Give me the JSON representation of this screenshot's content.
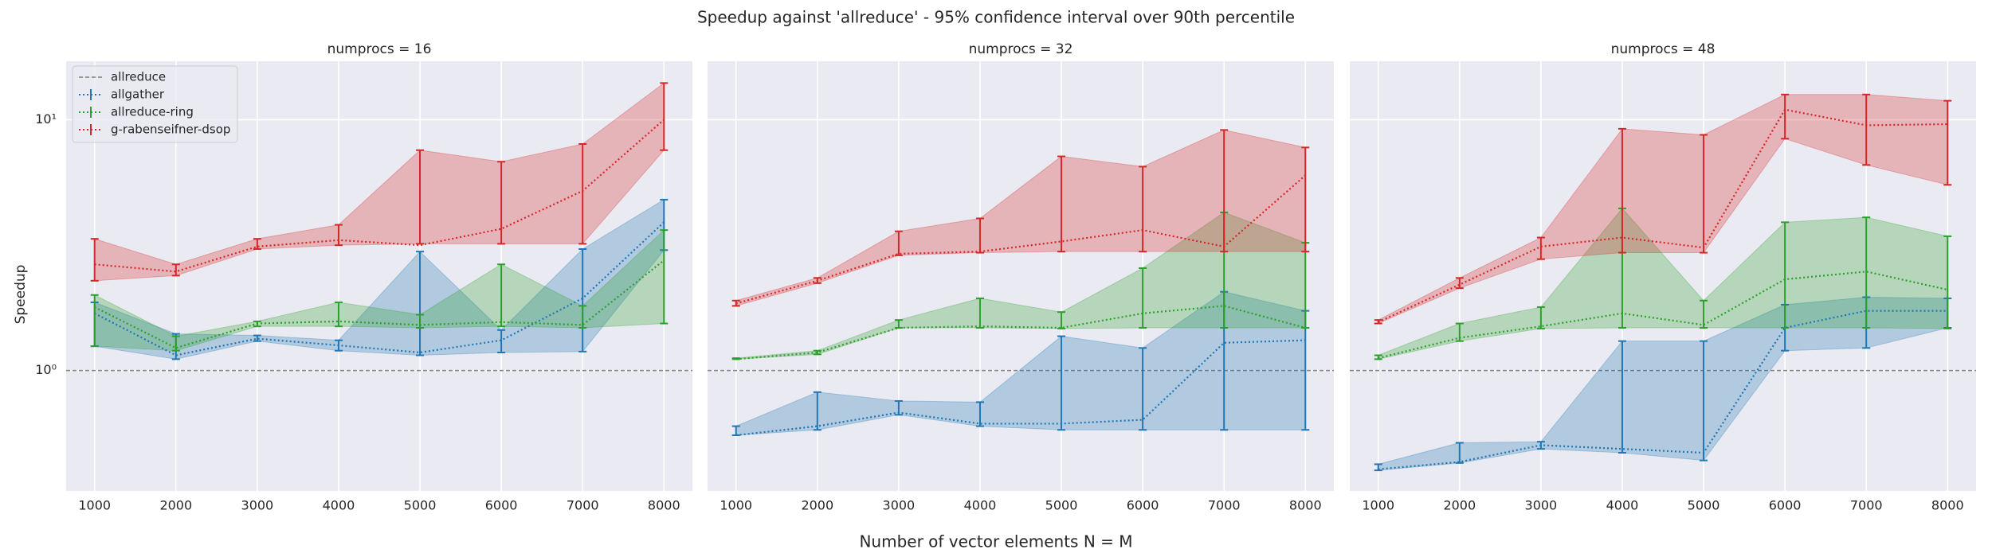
{
  "title": "Speedup against 'allreduce' - 95% confidence interval over 90th percentile",
  "x_label": "Number of vector elements N = M",
  "y_label": "Speedup",
  "chart_data": [
    {
      "type": "line",
      "title": "numprocs = 16",
      "x": [
        1000,
        2000,
        3000,
        4000,
        5000,
        6000,
        7000,
        8000
      ],
      "xlim": [
        650,
        8350
      ],
      "xticks": [
        1000,
        2000,
        3000,
        4000,
        5000,
        6000,
        7000,
        8000
      ],
      "ylim": [
        0.331,
        17.1
      ],
      "yscale": "log",
      "yticks": [
        {
          "value": 1,
          "label": "10⁰"
        },
        {
          "value": 10,
          "label": "10¹"
        }
      ],
      "grid": true,
      "legend": "upper left",
      "reference": {
        "name": "allreduce",
        "value": 1,
        "color": "#808080"
      },
      "series": [
        {
          "name": "allgather",
          "color": "#1f77b4",
          "values": [
            1.69,
            1.15,
            1.34,
            1.26,
            1.18,
            1.32,
            1.94,
            3.9
          ],
          "lower": [
            1.25,
            1.11,
            1.31,
            1.2,
            1.15,
            1.18,
            1.19,
            3.02
          ],
          "upper": [
            1.87,
            1.4,
            1.38,
            1.32,
            2.98,
            1.45,
            3.05,
            4.8
          ]
        },
        {
          "name": "allreduce-ring",
          "color": "#2ca02c",
          "values": [
            1.79,
            1.23,
            1.54,
            1.57,
            1.52,
            1.56,
            1.52,
            2.75
          ],
          "lower": [
            1.25,
            1.2,
            1.5,
            1.5,
            1.48,
            1.5,
            1.48,
            1.54
          ],
          "upper": [
            2.0,
            1.37,
            1.57,
            1.87,
            1.67,
            2.65,
            1.81,
            3.63
          ]
        },
        {
          "name": "g-rabenseifner-dsop",
          "color": "#d62728",
          "values": [
            2.65,
            2.48,
            3.12,
            3.31,
            3.16,
            3.67,
            5.2,
            10.0
          ],
          "lower": [
            2.28,
            2.39,
            3.05,
            3.16,
            3.2,
            3.2,
            3.2,
            7.56
          ],
          "upper": [
            3.35,
            2.65,
            3.35,
            3.81,
            7.56,
            6.8,
            8.0,
            14.0
          ]
        }
      ]
    },
    {
      "type": "line",
      "title": "numprocs = 32",
      "x": [
        1000,
        2000,
        3000,
        4000,
        5000,
        6000,
        7000,
        8000
      ],
      "xlim": [
        650,
        8350
      ],
      "xticks": [
        1000,
        2000,
        3000,
        4000,
        5000,
        6000,
        7000,
        8000
      ],
      "sharey": true,
      "grid": true,
      "reference": {
        "name": "allreduce",
        "value": 1,
        "color": "#808080"
      },
      "series": [
        {
          "name": "allgather",
          "color": "#1f77b4",
          "values": [
            0.552,
            0.6,
            0.68,
            0.614,
            0.614,
            0.636,
            1.29,
            1.32
          ],
          "lower": [
            0.552,
            0.58,
            0.666,
            0.6,
            0.58,
            0.58,
            0.58,
            0.58
          ],
          "upper": [
            0.6,
            0.82,
            0.756,
            0.748,
            1.37,
            1.23,
            2.06,
            1.73
          ]
        },
        {
          "name": "allreduce-ring",
          "color": "#2ca02c",
          "values": [
            1.11,
            1.18,
            1.48,
            1.5,
            1.48,
            1.69,
            1.81,
            1.48
          ],
          "lower": [
            1.11,
            1.16,
            1.48,
            1.48,
            1.47,
            1.48,
            1.48,
            1.48
          ],
          "upper": [
            1.12,
            1.2,
            1.59,
            1.94,
            1.71,
            2.56,
            4.27,
            3.23
          ]
        },
        {
          "name": "g-rabenseifner-dsop",
          "color": "#d62728",
          "values": [
            1.85,
            2.28,
            2.92,
            2.98,
            3.27,
            3.63,
            3.12,
            6.0
          ],
          "lower": [
            1.81,
            2.23,
            2.88,
            2.95,
            2.98,
            2.98,
            2.98,
            2.98
          ],
          "upper": [
            1.9,
            2.34,
            3.59,
            4.04,
            7.14,
            6.5,
            9.1,
            7.75
          ]
        }
      ]
    },
    {
      "type": "line",
      "title": "numprocs = 48",
      "x": [
        1000,
        2000,
        3000,
        4000,
        5000,
        6000,
        7000,
        8000
      ],
      "xlim": [
        650,
        8350
      ],
      "xticks": [
        1000,
        2000,
        3000,
        4000,
        5000,
        6000,
        7000,
        8000
      ],
      "sharey": true,
      "grid": true,
      "reference": {
        "name": "allreduce",
        "value": 1,
        "color": "#808080"
      },
      "series": [
        {
          "name": "allgather",
          "color": "#1f77b4",
          "values": [
            0.404,
            0.432,
            0.504,
            0.487,
            0.47,
            1.48,
            1.73,
            1.73
          ],
          "lower": [
            0.4,
            0.428,
            0.487,
            0.47,
            0.438,
            1.2,
            1.23,
            1.48
          ],
          "upper": [
            0.423,
            0.515,
            0.52,
            1.31,
            1.31,
            1.83,
            1.96,
            1.94
          ]
        },
        {
          "name": "allreduce-ring",
          "color": "#2ca02c",
          "values": [
            1.12,
            1.35,
            1.5,
            1.69,
            1.52,
            2.31,
            2.48,
            2.1
          ],
          "lower": [
            1.11,
            1.31,
            1.47,
            1.48,
            1.48,
            1.48,
            1.48,
            1.47
          ],
          "upper": [
            1.15,
            1.54,
            1.79,
            4.43,
            1.9,
            3.9,
            4.08,
            3.43
          ]
        },
        {
          "name": "g-rabenseifner-dsop",
          "color": "#d62728",
          "values": [
            1.56,
            2.2,
            3.12,
            3.39,
            3.09,
            10.97,
            9.5,
            9.6
          ],
          "lower": [
            1.54,
            2.13,
            2.78,
            2.95,
            2.95,
            8.4,
            6.6,
            5.5
          ],
          "upper": [
            1.59,
            2.34,
            3.39,
            9.2,
            8.7,
            12.6,
            12.6,
            11.9
          ]
        }
      ]
    }
  ]
}
